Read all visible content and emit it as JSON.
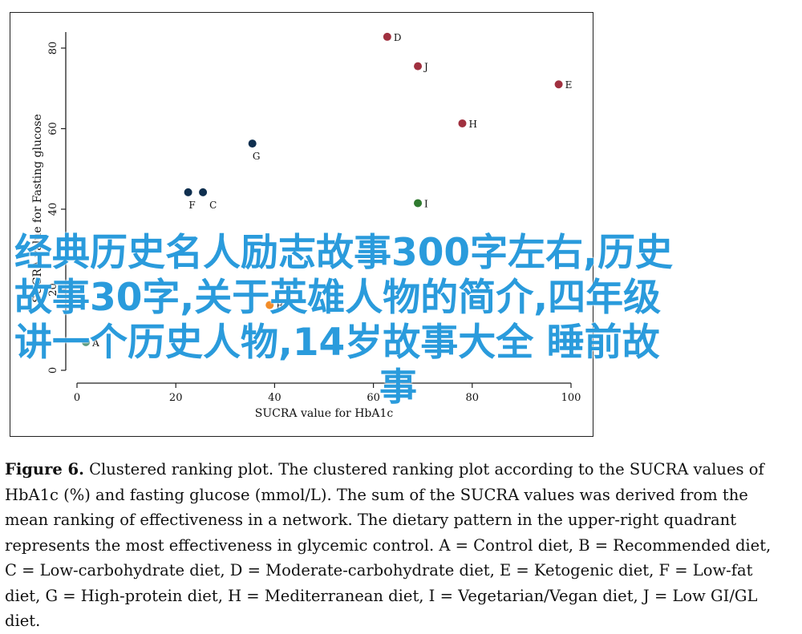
{
  "chart_data": {
    "type": "scatter",
    "xlabel": "SUCRA value for HbA1c",
    "ylabel": "SUCRA value for Fasting glucose",
    "xlim": [
      0,
      100
    ],
    "ylim": [
      0,
      80
    ],
    "xticks": [
      "0",
      "20",
      "40",
      "60",
      "80",
      "100"
    ],
    "yticks": [
      "0",
      "20",
      "40",
      "60",
      "80"
    ],
    "grid": false,
    "points": [
      {
        "label": "A",
        "x": 1.8,
        "y": 7.0,
        "color": "#5a9a7f"
      },
      {
        "label": "B",
        "x": 39.0,
        "y": 16.2,
        "color": "#f28c28"
      },
      {
        "label": "C",
        "x": 25.5,
        "y": 44.2,
        "color": "#0f2f4f"
      },
      {
        "label": "D",
        "x": 62.8,
        "y": 82.8,
        "color": "#a0303f"
      },
      {
        "label": "E",
        "x": 97.5,
        "y": 71.0,
        "color": "#a0303f"
      },
      {
        "label": "F",
        "x": 22.5,
        "y": 44.2,
        "color": "#0f2f4f"
      },
      {
        "label": "G",
        "x": 35.5,
        "y": 56.3,
        "color": "#0f2f4f"
      },
      {
        "label": "H",
        "x": 78.0,
        "y": 61.3,
        "color": "#a0303f"
      },
      {
        "label": "I",
        "x": 69.0,
        "y": 41.5,
        "color": "#2f7a2f"
      },
      {
        "label": "J",
        "x": 69.0,
        "y": 75.5,
        "color": "#a0303f"
      }
    ]
  },
  "overlay": {
    "line1": "经典历史名人励志故事300字左右,历史",
    "line2": "故事30字,关于英雄人物的简介,四年级",
    "line3": "讲一个历史人物,14岁故事大全 睡前故",
    "line4": "事"
  },
  "caption": {
    "label": "Figure 6.",
    "text": " Clustered ranking plot. The clustered ranking plot according to the SUCRA values of HbA1c (%) and fasting glucose (mmol/L). The sum of the SUCRA values was derived from the mean ranking of effectiveness in a network. The dietary pattern in the upper-right quadrant represents the most effectiveness in glycemic control. A = Control diet, B = Recommended diet, C = Low-carbohydrate diet, D = Moderate-carbohydrate diet, E = Ketogenic diet, F = Low-fat diet, G = High-protein diet, H = Mediterranean diet, I = Vegetarian/Vegan diet, J = Low GI/GL diet."
  }
}
